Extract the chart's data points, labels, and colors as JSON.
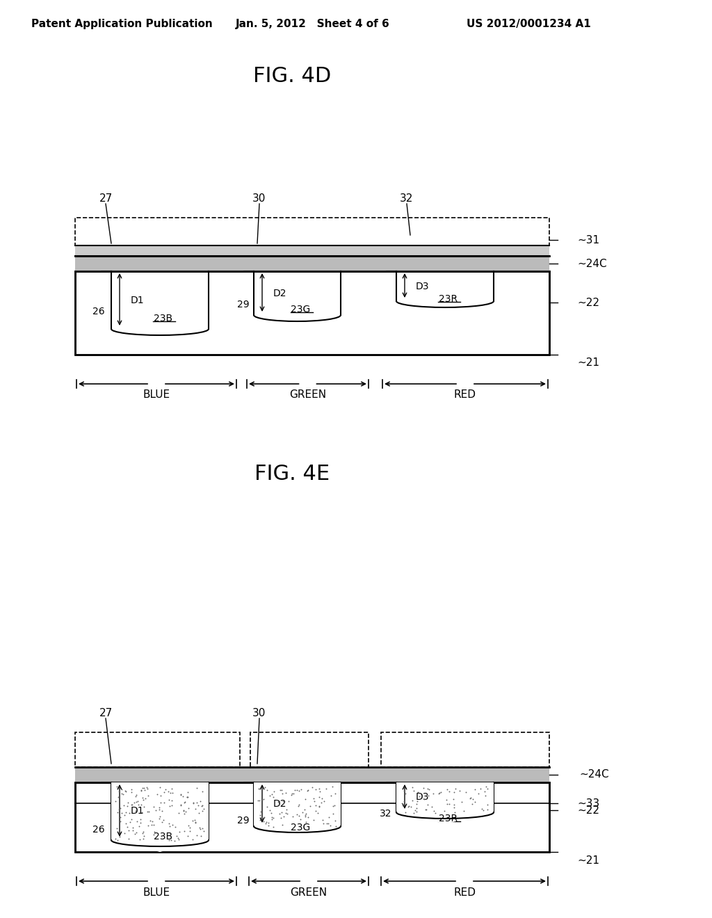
{
  "title_header_left": "Patent Application Publication",
  "title_header_mid": "Jan. 5, 2012   Sheet 4 of 6",
  "title_header_right": "US 2012/0001234 A1",
  "fig4d_title": "FIG. 4D",
  "fig4e_title": "FIG. 4E",
  "bg_color": "#ffffff",
  "line_color": "#000000",
  "text_color": "#000000",
  "fig4d": {
    "labels_top": [
      "27",
      "30",
      "32"
    ],
    "labels_right": [
      "31",
      "24C",
      "22",
      "21"
    ],
    "labels_inside_left": [
      "26",
      "23B"
    ],
    "labels_inside_mid": [
      "29",
      "23G"
    ],
    "labels_inside_right": [
      "23R"
    ],
    "depth_labels": [
      "D1",
      "D2",
      "D3"
    ],
    "color_labels": [
      "BLUE",
      "GREEN",
      "RED"
    ]
  },
  "fig4e": {
    "labels_top": [
      "27",
      "30"
    ],
    "labels_right": [
      "24C",
      "33",
      "22",
      "21"
    ],
    "labels_inside_left": [
      "26",
      "23B"
    ],
    "labels_inside_mid": [
      "29",
      "23G"
    ],
    "labels_inside_right": [
      "32",
      "23R"
    ],
    "depth_labels": [
      "D1",
      "D2",
      "D3"
    ],
    "color_labels": [
      "BLUE",
      "GREEN",
      "RED"
    ]
  }
}
